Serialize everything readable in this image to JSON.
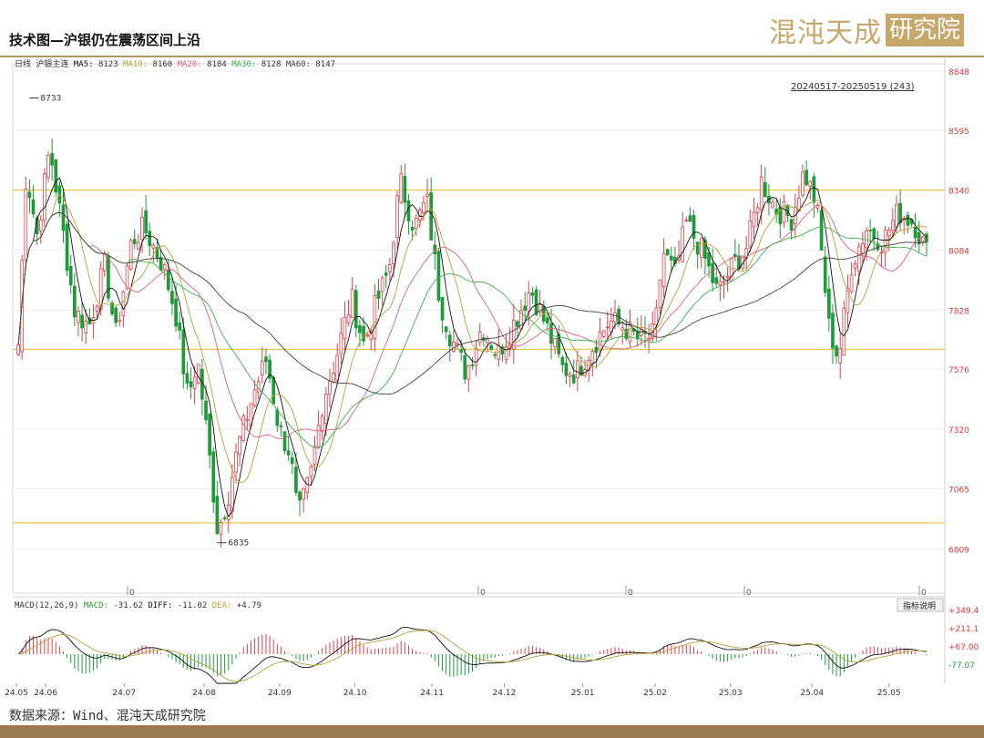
{
  "page": {
    "title": "技术图—沪银仍在震荡区间上沿",
    "logo_main": "混沌天成",
    "logo_box": "研究院",
    "source": "数据来源：Wind、混沌天成研究院"
  },
  "chart_data": {
    "type": "candlestick",
    "period_label": "日线",
    "symbol": "沪银主连",
    "date_range_label": "20240517-20250519 (243)",
    "ma_legend": [
      {
        "name": "MA5",
        "value": "8123",
        "color": "#111111"
      },
      {
        "name": "MA10",
        "value": "8160",
        "color": "#b5a33a"
      },
      {
        "name": "MA20",
        "value": "8184",
        "color": "#e0607e"
      },
      {
        "name": "MA30",
        "value": "8128",
        "color": "#3cb44b"
      },
      {
        "name": "MA60",
        "value": "8147",
        "color": "#444444"
      }
    ],
    "y_ticks": [
      8848,
      8595,
      8340,
      8084,
      7828,
      7576,
      7320,
      7065,
      6809
    ],
    "ylim": [
      6620,
      8848
    ],
    "x_labels": [
      "24.05",
      "24.06",
      "24.07",
      "24.08",
      "24.09",
      "24.10",
      "24.11",
      "24.12",
      "25.01",
      "25.02",
      "25.03",
      "25.04",
      "25.05"
    ],
    "x_label_positions": [
      0.0,
      0.19,
      0.7,
      1.22,
      1.71,
      2.2,
      2.7,
      3.17,
      3.68,
      4.15,
      4.64,
      5.17,
      5.67
    ],
    "annotations": [
      {
        "label": "8733",
        "value": 8733
      },
      {
        "label": "6835",
        "value": 6835
      }
    ],
    "horizontal_lines": [
      8340,
      7660,
      6920
    ],
    "zero_markers": [
      "0",
      "0",
      "0",
      "0",
      "0"
    ],
    "key_points": [
      {
        "m": 0.0,
        "v": 7680
      },
      {
        "m": 0.05,
        "v": 8420
      },
      {
        "m": 0.12,
        "v": 8150
      },
      {
        "m": 0.2,
        "v": 8520
      },
      {
        "m": 0.28,
        "v": 8180
      },
      {
        "m": 0.36,
        "v": 7820
      },
      {
        "m": 0.45,
        "v": 7760
      },
      {
        "m": 0.55,
        "v": 8020
      },
      {
        "m": 0.62,
        "v": 7720
      },
      {
        "m": 0.72,
        "v": 8120
      },
      {
        "m": 0.8,
        "v": 8180
      },
      {
        "m": 0.92,
        "v": 8020
      },
      {
        "m": 1.0,
        "v": 7820
      },
      {
        "m": 1.08,
        "v": 7450
      },
      {
        "m": 1.14,
        "v": 7620
      },
      {
        "m": 1.2,
        "v": 7300
      },
      {
        "m": 1.27,
        "v": 6880
      },
      {
        "m": 1.33,
        "v": 7020
      },
      {
        "m": 1.4,
        "v": 7250
      },
      {
        "m": 1.5,
        "v": 7480
      },
      {
        "m": 1.58,
        "v": 7620
      },
      {
        "m": 1.66,
        "v": 7320
      },
      {
        "m": 1.73,
        "v": 7220
      },
      {
        "m": 1.78,
        "v": 6940
      },
      {
        "m": 1.86,
        "v": 7120
      },
      {
        "m": 1.94,
        "v": 7450
      },
      {
        "m": 2.02,
        "v": 7620
      },
      {
        "m": 2.12,
        "v": 7880
      },
      {
        "m": 2.2,
        "v": 7680
      },
      {
        "m": 2.28,
        "v": 7860
      },
      {
        "m": 2.36,
        "v": 8000
      },
      {
        "m": 2.43,
        "v": 8380
      },
      {
        "m": 2.52,
        "v": 8180
      },
      {
        "m": 2.6,
        "v": 8300
      },
      {
        "m": 2.68,
        "v": 7880
      },
      {
        "m": 2.75,
        "v": 7720
      },
      {
        "m": 2.85,
        "v": 7560
      },
      {
        "m": 2.95,
        "v": 7760
      },
      {
        "m": 3.05,
        "v": 7640
      },
      {
        "m": 3.16,
        "v": 7780
      },
      {
        "m": 3.26,
        "v": 7920
      },
      {
        "m": 3.36,
        "v": 7760
      },
      {
        "m": 3.46,
        "v": 7580
      },
      {
        "m": 3.55,
        "v": 7560
      },
      {
        "m": 3.66,
        "v": 7680
      },
      {
        "m": 3.76,
        "v": 7780
      },
      {
        "m": 3.85,
        "v": 7760
      },
      {
        "m": 3.95,
        "v": 7700
      },
      {
        "m": 4.05,
        "v": 7720
      },
      {
        "m": 4.1,
        "v": 8080
      },
      {
        "m": 4.18,
        "v": 7980
      },
      {
        "m": 4.25,
        "v": 8200
      },
      {
        "m": 4.35,
        "v": 8080
      },
      {
        "m": 4.45,
        "v": 7900
      },
      {
        "m": 4.55,
        "v": 8020
      },
      {
        "m": 4.64,
        "v": 8100
      },
      {
        "m": 4.73,
        "v": 8380
      },
      {
        "m": 4.82,
        "v": 8260
      },
      {
        "m": 4.92,
        "v": 8220
      },
      {
        "m": 5.0,
        "v": 8420
      },
      {
        "m": 5.08,
        "v": 8280
      },
      {
        "m": 5.16,
        "v": 7750
      },
      {
        "m": 5.22,
        "v": 7620
      },
      {
        "m": 5.3,
        "v": 8020
      },
      {
        "m": 5.4,
        "v": 8180
      },
      {
        "m": 5.5,
        "v": 8120
      },
      {
        "m": 5.6,
        "v": 8250
      },
      {
        "m": 5.7,
        "v": 8200
      },
      {
        "m": 5.78,
        "v": 8080
      }
    ],
    "macd": {
      "label": "MACD(12,26,9)",
      "legend": [
        {
          "name": "MACD",
          "value": "-31.62",
          "color": "#2f9e2f"
        },
        {
          "name": "DIFF",
          "value": "-11.02",
          "color": "#111111"
        },
        {
          "name": "DEA",
          "value": "+4.79",
          "color": "#b5a33a"
        }
      ],
      "y_ticks": [
        "+349.4",
        "+211.1",
        "+67.00",
        "-77.07"
      ],
      "button": "指标说明"
    }
  }
}
